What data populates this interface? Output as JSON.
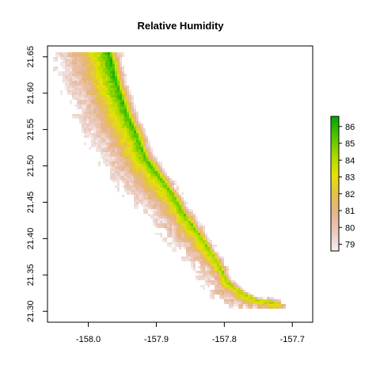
{
  "chart_data": {
    "type": "heatmap",
    "title": "Relative Humidity",
    "xlabel": "",
    "ylabel": "",
    "x_ticks": [
      -158.0,
      -157.9,
      -157.8,
      -157.7
    ],
    "x_tick_labels": [
      "-158.0",
      "-157.9",
      "-157.8",
      "-157.7"
    ],
    "y_ticks": [
      21.3,
      21.35,
      21.4,
      21.45,
      21.5,
      21.55,
      21.6,
      21.65
    ],
    "y_tick_labels": [
      "21.30",
      "21.35",
      "21.40",
      "21.45",
      "21.50",
      "21.55",
      "21.60",
      "21.65"
    ],
    "xlim": [
      -158.06,
      -157.67
    ],
    "ylim": [
      21.285,
      21.665
    ],
    "colorbar": {
      "ticks": [
        79,
        80,
        81,
        82,
        83,
        84,
        85,
        86
      ],
      "tick_labels": [
        "79",
        "80",
        "81",
        "82",
        "83",
        "84",
        "85",
        "86"
      ],
      "range": [
        78.6,
        86.6
      ],
      "colors": [
        "#f2f2f2",
        "#ecc9bd",
        "#e6b48a",
        "#e5c04a",
        "#e6e300",
        "#a6d800",
        "#4fc400",
        "#00a600"
      ],
      "placement": "right"
    },
    "ridge_path": [
      [
        -157.97,
        21.66
      ],
      [
        -157.96,
        21.62
      ],
      [
        -157.945,
        21.575
      ],
      [
        -157.93,
        21.545
      ],
      [
        -157.915,
        21.51
      ],
      [
        -157.895,
        21.485
      ],
      [
        -157.875,
        21.46
      ],
      [
        -157.86,
        21.435
      ],
      [
        -157.84,
        21.41
      ],
      [
        -157.822,
        21.385
      ],
      [
        -157.808,
        21.365
      ],
      [
        -157.795,
        21.34
      ],
      [
        -157.775,
        21.325
      ],
      [
        -157.75,
        21.315
      ],
      [
        -157.72,
        21.31
      ]
    ],
    "ridge_max": 86.3,
    "grid": false
  },
  "colors": {
    "background": "#ffffff",
    "frame": "#000000",
    "no_data": "#ffffff"
  }
}
